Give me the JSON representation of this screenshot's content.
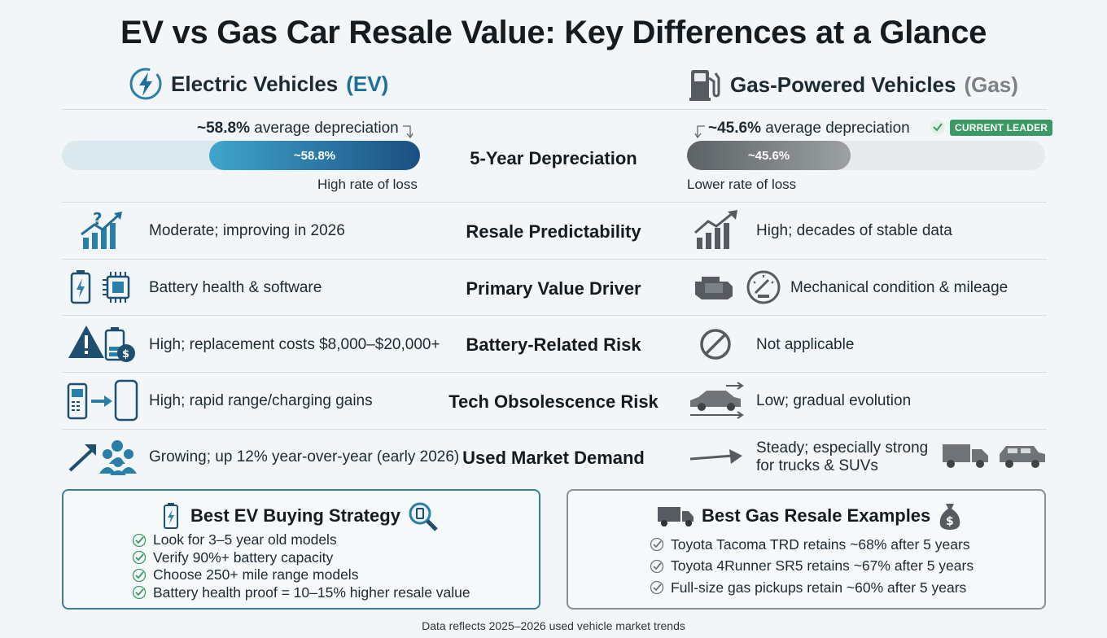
{
  "title": "EV vs Gas Car Resale Value: Key Differences at a Glance",
  "ev_header": {
    "label": "Electric Vehicles",
    "tag": "(EV)"
  },
  "gas_header": {
    "label": "Gas-Powered Vehicles",
    "tag": "(Gas)"
  },
  "depreciation": {
    "label": "5-Year Depreciation",
    "ev": {
      "value_pct": 58.8,
      "value_text": "~58.8%",
      "caption_strong": "~58.8%",
      "caption_rest": "average depreciation",
      "note": "High rate of loss"
    },
    "gas": {
      "value_pct": 45.6,
      "value_text": "~45.6%",
      "caption_strong": "~45.6%",
      "caption_rest": "average depreciation",
      "note": "Lower rate of loss",
      "badge": "CURRENT LEADER"
    }
  },
  "rows": [
    {
      "label": "Resale Predictability",
      "ev": "Moderate; improving in 2026",
      "gas": "High; decades of stable data"
    },
    {
      "label": "Primary Value Driver",
      "ev": "Battery health & software",
      "gas": "Mechanical condition & mileage"
    },
    {
      "label": "Battery-Related Risk",
      "ev": "High; replacement costs $8,000–$20,000+",
      "gas": "Not applicable"
    },
    {
      "label": "Tech Obsolescence Risk",
      "ev": "High; rapid range/charging gains",
      "gas": "Low; gradual evolution"
    },
    {
      "label": "Used Market Demand",
      "ev": "Growing; up 12% year-over-year (early 2026)",
      "gas_line1": "Steady; especially strong",
      "gas_line2": "for trucks & SUVs"
    }
  ],
  "ev_box": {
    "title": "Best EV Buying Strategy",
    "items": [
      "Look for 3–5 year old models",
      "Verify 90%+ battery capacity",
      "Choose 250+ mile range models",
      "Battery health proof = 10–15% higher resale value"
    ]
  },
  "gas_box": {
    "title": "Best Gas Resale Examples",
    "items": [
      "Toyota Tacoma TRD retains ~68% after 5 years",
      "Toyota 4Runner SR5 retains ~67% after 5 years",
      "Full-size gas pickups retain ~60% after 5 years"
    ]
  },
  "footer": "Data reflects 2025–2026 used vehicle market trends",
  "colors": {
    "ev_accent": "#1f6f99",
    "gas_accent": "#6e7478",
    "leader_green": "#3b9a64",
    "ev_box_border": "#3a7f97",
    "gas_box_border": "#8a9094"
  },
  "icons": {
    "ev_header": "lightning-bolt-icon",
    "gas_header": "fuel-pump-icon",
    "predictability_ev": "chart-question-icon",
    "predictability_gas": "chart-growth-icon",
    "driver_ev": "battery-chip-icon",
    "driver_gas": "engine-gauge-icon",
    "battery_risk_ev": "warning-battery-icon",
    "battery_risk_gas": "not-allowed-icon",
    "obsolescence_ev": "phone-upgrade-icon",
    "obsolescence_gas": "car-motion-icon",
    "demand_ev": "people-trend-icon",
    "demand_gas": "truck-suv-icon"
  }
}
